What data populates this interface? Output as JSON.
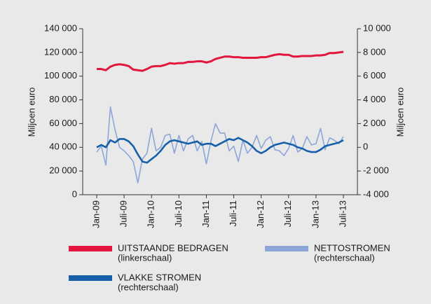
{
  "chart_data": {
    "type": "line",
    "ylabel": "Miljoen euro",
    "y2label": "Miljoen euro",
    "categories": [
      "Jan-09",
      null,
      null,
      null,
      null,
      null,
      "Juli-09",
      null,
      null,
      null,
      null,
      null,
      "Jan-10",
      null,
      null,
      null,
      null,
      null,
      "Juli-10",
      null,
      null,
      null,
      null,
      null,
      "Jan-11",
      null,
      null,
      null,
      null,
      null,
      "Juli-11",
      null,
      null,
      null,
      null,
      null,
      "Jan-12",
      null,
      null,
      null,
      null,
      null,
      "Juli-12",
      null,
      null,
      null,
      null,
      null,
      "Jan-13",
      null,
      null,
      null,
      null,
      null,
      "Juli-13"
    ],
    "ylim": [
      0,
      140000
    ],
    "yticks": [
      0,
      {
        "value": 20000,
        "label": "20 000"
      },
      {
        "value": 40000,
        "label": "40 000"
      },
      {
        "value": 60000,
        "label": "60 000"
      },
      {
        "value": 80000,
        "label": "80 000"
      },
      {
        "value": 100000,
        "label": "100 000"
      },
      {
        "value": 120000,
        "label": "120 000"
      },
      {
        "value": 140000,
        "label": "140 000"
      }
    ],
    "y2lim": [
      -4000,
      10000
    ],
    "y2ticks": [
      {
        "value": -4000,
        "label": "-4 000"
      },
      {
        "value": -2000,
        "label": "-2 000"
      },
      0,
      {
        "value": 2000,
        "label": "2 000"
      },
      {
        "value": 4000,
        "label": "4 000"
      },
      {
        "value": 6000,
        "label": "6 000"
      },
      {
        "value": 8000,
        "label": "8 000"
      },
      {
        "value": 10000,
        "label": "10 000"
      }
    ],
    "series": [
      {
        "name": "UITSTAANDE BEDRAGEN",
        "scale": "(linkerschaal)",
        "color": "#e3173e",
        "axis": "y",
        "values": [
          106000,
          106000,
          105000,
          108000,
          109500,
          110000,
          109500,
          108500,
          105500,
          105000,
          104500,
          106000,
          108000,
          108500,
          108500,
          109500,
          111000,
          110500,
          111000,
          111000,
          112000,
          112000,
          112500,
          112500,
          111500,
          112500,
          114500,
          115500,
          116500,
          116500,
          116000,
          116000,
          115500,
          115500,
          115500,
          115500,
          116000,
          116000,
          117000,
          118000,
          118500,
          118000,
          118000,
          116500,
          116500,
          117000,
          117000,
          117000,
          117500,
          117500,
          118000,
          119500,
          119500,
          120000,
          120500
        ]
      },
      {
        "name": "NETTOSTROMEN",
        "scale": "(rechterschaal)",
        "color": "#8da6d8",
        "axis": "y2",
        "values": [
          -400,
          100,
          -1500,
          3400,
          1500,
          0,
          -300,
          -700,
          -1200,
          -3000,
          -1000,
          -500,
          1600,
          -300,
          0,
          1000,
          1100,
          -500,
          1000,
          -300,
          700,
          1000,
          -300,
          500,
          -1400,
          500,
          2000,
          1200,
          1200,
          -300,
          100,
          -1200,
          600,
          -500,
          0,
          1000,
          -100,
          600,
          900,
          -200,
          -300,
          -700,
          -100,
          1000,
          -400,
          -100,
          900,
          200,
          300,
          1600,
          -200,
          800,
          600,
          300,
          900
        ]
      },
      {
        "name": "VLAKKE STROMEN",
        "scale": "(rechterschaal)",
        "color": "#1660a9",
        "axis": "y2",
        "values": [
          0,
          200,
          0,
          600,
          400,
          700,
          700,
          500,
          100,
          -600,
          -1200,
          -1300,
          -1000,
          -700,
          -300,
          200,
          500,
          600,
          500,
          400,
          300,
          400,
          500,
          200,
          300,
          300,
          100,
          300,
          500,
          700,
          600,
          800,
          600,
          400,
          100,
          -300,
          -500,
          -300,
          0,
          200,
          300,
          400,
          300,
          200,
          0,
          -100,
          -300,
          -400,
          -400,
          -200,
          100,
          200,
          300,
          400,
          600
        ]
      }
    ]
  }
}
